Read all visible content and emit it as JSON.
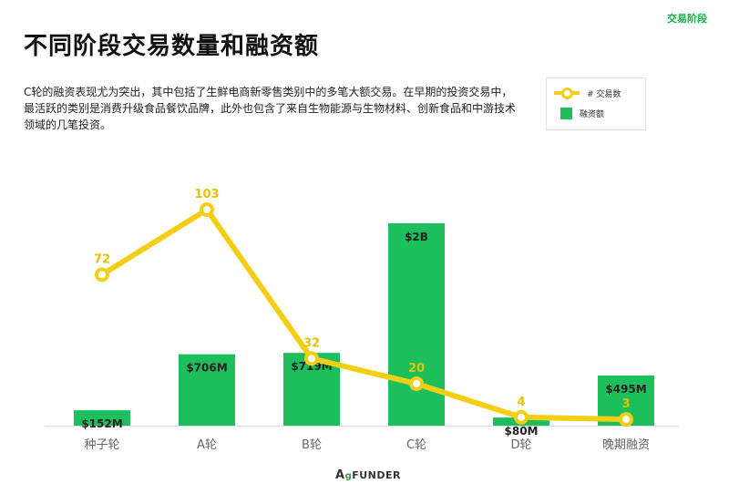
{
  "header": {
    "tag": "交易阶段",
    "title": "不同阶段交易数量和融资额",
    "description": "C轮的融资表现尤为突出，其中包括了生鲜电商新零售类别中的多笔大额交易。在早期的投资交易中，最活跃的类别是消费升级食品餐饮品牌，此外也包含了来自生物能源与生物材料、创新食品和中游技术领域的几笔投资。"
  },
  "legend": {
    "deals_label": "# 交易数",
    "funding_label": "融资额"
  },
  "logo": {
    "text_a": "A",
    "text_g": "g",
    "text_rest": "FUNDER"
  },
  "colors": {
    "bar": "#1dbf5c",
    "line": "#f2cf14",
    "label_line": "#e6c200",
    "axis_text": "#666666"
  },
  "chart_data": {
    "type": "bar",
    "categories": [
      "种子轮",
      "A轮",
      "B轮",
      "C轮",
      "D轮",
      "晚期融资"
    ],
    "series": [
      {
        "name": "融资额",
        "type": "bar",
        "values_musd": [
          152,
          706,
          719,
          2000,
          80,
          495
        ],
        "labels": [
          "$152M",
          "$706M",
          "$719M",
          "$2B",
          "$80M",
          "$495M"
        ]
      },
      {
        "name": "# 交易数",
        "type": "line",
        "values": [
          72,
          103,
          32,
          20,
          4,
          3
        ]
      }
    ]
  }
}
